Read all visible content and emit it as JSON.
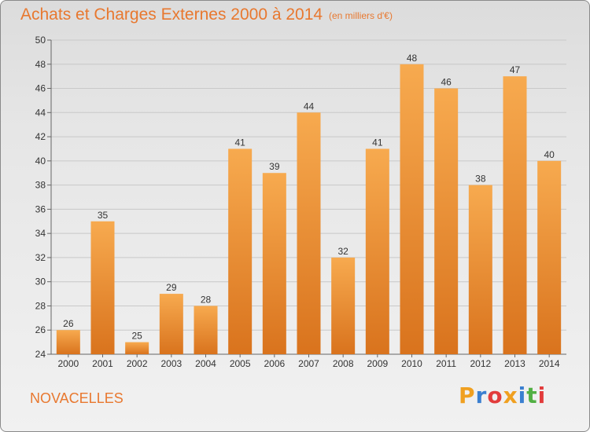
{
  "header": {
    "title": "Achats et Charges Externes 2000 à 2014",
    "subtitle": "(en milliers d'€)"
  },
  "footer": {
    "commune": "NOVACELLES",
    "brand": "Proxiti",
    "brand_colors": [
      "#f0a020",
      "#3a7fd0",
      "#e23c3c",
      "#f0a020",
      "#3a7fd0",
      "#52b044",
      "#e23c3c"
    ]
  },
  "colors": {
    "bar_top": "#f7aa4f",
    "bar_bottom": "#d9731d",
    "accent": "#e8782f"
  },
  "chart_data": {
    "type": "bar",
    "categories": [
      "2000",
      "2001",
      "2002",
      "2003",
      "2004",
      "2005",
      "2006",
      "2007",
      "2008",
      "2009",
      "2010",
      "2011",
      "2012",
      "2013",
      "2014"
    ],
    "values": [
      26,
      35,
      25,
      29,
      28,
      41,
      39,
      44,
      32,
      41,
      48,
      46,
      38,
      47,
      40
    ],
    "ylim": [
      24,
      50
    ],
    "yticks": [
      24,
      26,
      28,
      30,
      32,
      34,
      36,
      38,
      40,
      42,
      44,
      46,
      48,
      50
    ],
    "grid": true,
    "data_labels": true
  }
}
